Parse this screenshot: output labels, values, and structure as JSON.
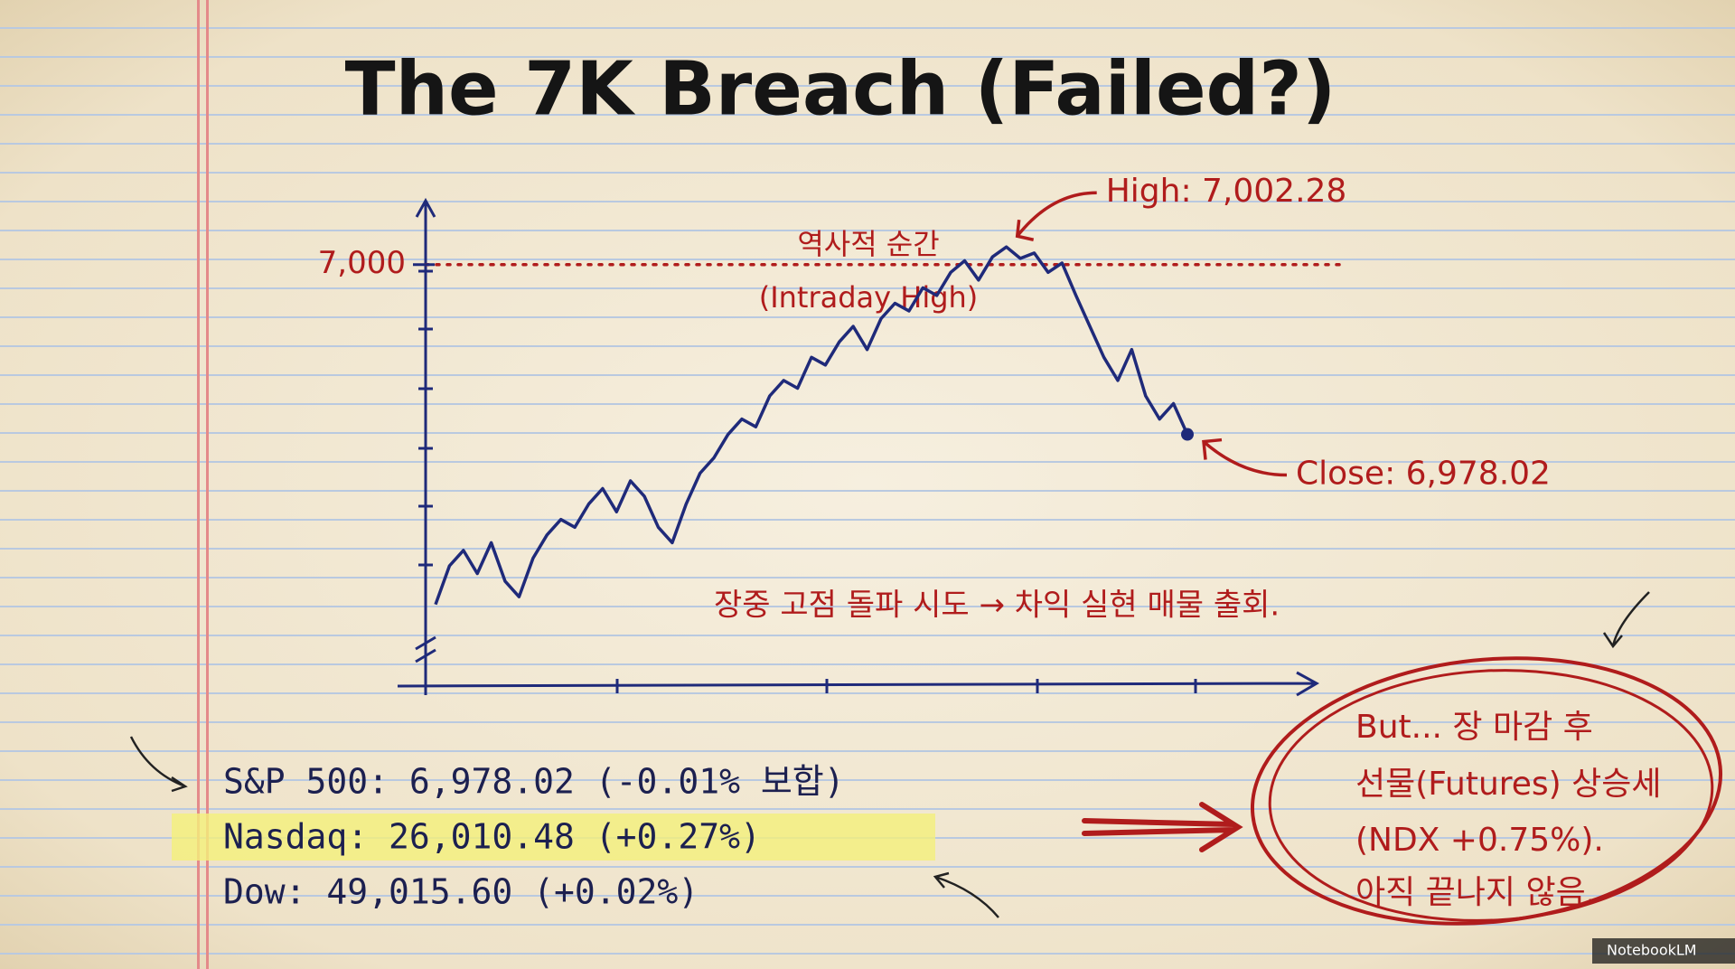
{
  "chart_data": {
    "type": "line",
    "title": "The 7K Breach (Failed?)",
    "annotations": [
      "역사적 순간",
      "(Intraday High)",
      "장중 고점 돌파 시도 → 차익 실현 매물 출회."
    ],
    "series": [
      {
        "color": "#1f2a7a",
        "values": [
          6956,
          6961,
          6963,
          6960,
          6964,
          6959,
          6957,
          6962,
          6965,
          6967,
          6966,
          6969,
          6971,
          6968,
          6972,
          6970,
          6966,
          6964,
          6969,
          6973,
          6975,
          6978,
          6980,
          6979,
          6983,
          6985,
          6984,
          6988,
          6987,
          6990,
          6992,
          6989,
          6993,
          6995,
          6994,
          6997,
          6996,
          6999,
          7000.5,
          6998,
          7001,
          7002.28,
          7000.8,
          7001.5,
          6999,
          7000.2,
          6996,
          6992,
          6988,
          6985,
          6989,
          6983,
          6980,
          6982,
          6978.02
        ],
        "value_labels": [
          null,
          null,
          null,
          null,
          null,
          null,
          null,
          null,
          null,
          null,
          null,
          null,
          null,
          null,
          null,
          null,
          null,
          null,
          null,
          null,
          null,
          null,
          null,
          null,
          null,
          null,
          null,
          null,
          null,
          null,
          null,
          null,
          null,
          null,
          null,
          null,
          null,
          null,
          null,
          null,
          null,
          "High: 7,002.28",
          null,
          null,
          null,
          null,
          null,
          null,
          null,
          null,
          null,
          null,
          null,
          null,
          "Close: 6,978.02"
        ]
      }
    ],
    "ylim": [
      6950,
      7005
    ],
    "yticks": [
      {
        "value": 7000,
        "label": "7,000"
      }
    ],
    "reference_color": "#b01c1c"
  },
  "market_summary": [
    "S&P 500: 6,978.02 (-0.01% 보합)",
    "Nasdaq: 26,010.48 (+0.27%)",
    "Dow: 49,015.60 (+0.02%)"
  ],
  "callout": [
    "But... 장 마감 후",
    "선물(Futures) 상승세",
    "(NDX +0.75%).",
    "아직 끝나지 않음."
  ],
  "footer": "NotebookLM"
}
